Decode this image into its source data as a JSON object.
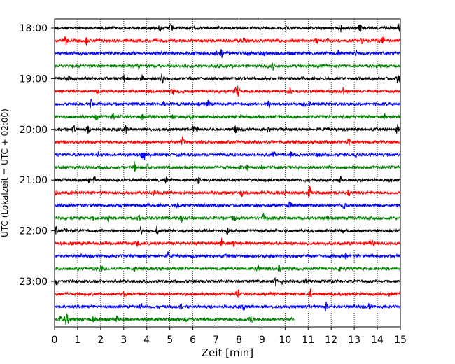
{
  "chart_data": {
    "type": "line",
    "title": "",
    "xlabel": "Zeit  [min]",
    "ylabel": "UTC (Lokalzeit = UTC + 02:00)",
    "xlim": [
      0,
      15
    ],
    "x_ticks": [
      "0",
      "1",
      "2",
      "3",
      "4",
      "5",
      "6",
      "7",
      "8",
      "9",
      "10",
      "11",
      "12",
      "13",
      "14",
      "15"
    ],
    "y_tick_labels": [
      "18:00",
      "19:00",
      "20:00",
      "21:00",
      "22:00",
      "23:00"
    ],
    "grid": "vertical-dotted",
    "traces_per_hour": 4,
    "trace_minutes": 15,
    "colors": [
      "#000000",
      "#ff0000",
      "#0000ff",
      "#008000"
    ],
    "series": [
      {
        "start": "18:00",
        "color": "#000000",
        "end_min": 15
      },
      {
        "start": "18:15",
        "color": "#ff0000",
        "end_min": 15
      },
      {
        "start": "18:30",
        "color": "#0000ff",
        "end_min": 15
      },
      {
        "start": "18:45",
        "color": "#008000",
        "end_min": 15
      },
      {
        "start": "19:00",
        "color": "#000000",
        "end_min": 15
      },
      {
        "start": "19:15",
        "color": "#ff0000",
        "end_min": 15
      },
      {
        "start": "19:30",
        "color": "#0000ff",
        "end_min": 15
      },
      {
        "start": "19:45",
        "color": "#008000",
        "end_min": 15
      },
      {
        "start": "20:00",
        "color": "#000000",
        "end_min": 15
      },
      {
        "start": "20:15",
        "color": "#ff0000",
        "end_min": 15
      },
      {
        "start": "20:30",
        "color": "#0000ff",
        "end_min": 15
      },
      {
        "start": "20:45",
        "color": "#008000",
        "end_min": 15
      },
      {
        "start": "21:00",
        "color": "#000000",
        "end_min": 15
      },
      {
        "start": "21:15",
        "color": "#ff0000",
        "end_min": 15
      },
      {
        "start": "21:30",
        "color": "#0000ff",
        "end_min": 15
      },
      {
        "start": "21:45",
        "color": "#008000",
        "end_min": 15
      },
      {
        "start": "22:00",
        "color": "#000000",
        "end_min": 15
      },
      {
        "start": "22:15",
        "color": "#ff0000",
        "end_min": 15
      },
      {
        "start": "22:30",
        "color": "#0000ff",
        "end_min": 15
      },
      {
        "start": "22:45",
        "color": "#008000",
        "end_min": 15
      },
      {
        "start": "23:00",
        "color": "#000000",
        "end_min": 15
      },
      {
        "start": "23:15",
        "color": "#ff0000",
        "end_min": 15
      },
      {
        "start": "23:30",
        "color": "#0000ff",
        "end_min": 15
      },
      {
        "start": "23:45",
        "color": "#008000",
        "end_min": 10.4
      }
    ]
  }
}
